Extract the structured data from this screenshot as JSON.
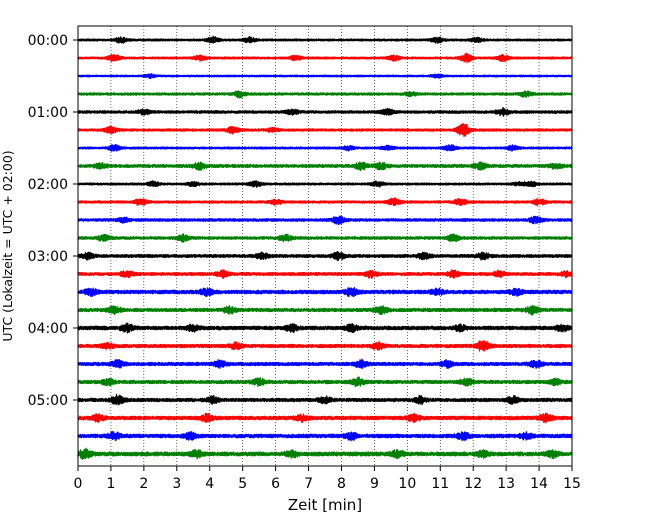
{
  "chart_data": {
    "type": "line",
    "xlabel": "Zeit  [min]",
    "ylabel": "UTC (Lokalzeit = UTC + 02:00)",
    "xlim": [
      0,
      15
    ],
    "x_ticks": [
      0,
      1,
      2,
      3,
      4,
      5,
      6,
      7,
      8,
      9,
      10,
      11,
      12,
      13,
      14,
      15
    ],
    "grid": "vertical-dotted",
    "trace_interval_minutes": 15,
    "trace_count": 24,
    "y_tick_labels": [
      {
        "label": "00:00",
        "trace_index": 0
      },
      {
        "label": "01:00",
        "trace_index": 4
      },
      {
        "label": "02:00",
        "trace_index": 8
      },
      {
        "label": "03:00",
        "trace_index": 12
      },
      {
        "label": "04:00",
        "trace_index": 16
      },
      {
        "label": "05:00",
        "trace_index": 20
      }
    ],
    "color_cycle": [
      "#000000",
      "#ff0000",
      "#0000ff",
      "#008000"
    ],
    "series": [
      {
        "start": "00:00",
        "color": "#000000",
        "noise": 0.3,
        "events": [
          [
            1.3,
            0.8
          ],
          [
            4.1,
            0.9
          ],
          [
            5.2,
            0.7
          ],
          [
            10.9,
            0.8
          ],
          [
            12.1,
            0.6
          ]
        ]
      },
      {
        "start": "00:15",
        "color": "#ff0000",
        "noise": 0.3,
        "events": [
          [
            1.1,
            1.0
          ],
          [
            3.7,
            0.7
          ],
          [
            6.6,
            0.6
          ],
          [
            9.6,
            0.7
          ],
          [
            11.8,
            1.2
          ],
          [
            12.9,
            0.8
          ]
        ]
      },
      {
        "start": "00:30",
        "color": "#0000ff",
        "noise": 0.25,
        "events": [
          [
            2.2,
            0.5
          ],
          [
            10.9,
            0.5
          ]
        ]
      },
      {
        "start": "00:45",
        "color": "#008000",
        "noise": 0.35,
        "events": [
          [
            4.9,
            0.9
          ],
          [
            10.1,
            0.6
          ],
          [
            13.6,
            0.8
          ]
        ]
      },
      {
        "start": "01:00",
        "color": "#000000",
        "noise": 0.4,
        "events": [
          [
            2.0,
            0.7
          ],
          [
            6.5,
            0.6
          ],
          [
            9.4,
            0.7
          ],
          [
            12.9,
            1.0
          ]
        ]
      },
      {
        "start": "01:15",
        "color": "#ff0000",
        "noise": 0.35,
        "events": [
          [
            1.0,
            0.9
          ],
          [
            4.7,
            0.9
          ],
          [
            11.7,
            1.8
          ],
          [
            5.9,
            0.6
          ]
        ]
      },
      {
        "start": "01:30",
        "color": "#0000ff",
        "noise": 0.3,
        "events": [
          [
            1.1,
            0.8
          ],
          [
            8.2,
            0.6
          ],
          [
            9.4,
            0.6
          ],
          [
            11.3,
            0.8
          ],
          [
            13.2,
            0.7
          ]
        ]
      },
      {
        "start": "01:45",
        "color": "#008000",
        "noise": 0.45,
        "events": [
          [
            0.7,
            0.7
          ],
          [
            3.7,
            1.0
          ],
          [
            8.6,
            1.0
          ],
          [
            9.2,
            0.9
          ],
          [
            12.2,
            0.9
          ],
          [
            14.5,
            0.7
          ]
        ]
      },
      {
        "start": "02:00",
        "color": "#000000",
        "noise": 0.3,
        "events": [
          [
            2.3,
            0.7
          ],
          [
            3.5,
            0.6
          ],
          [
            5.4,
            0.8
          ],
          [
            9.1,
            0.7
          ],
          [
            13.4,
            0.6
          ],
          [
            13.8,
            0.6
          ]
        ]
      },
      {
        "start": "02:15",
        "color": "#ff0000",
        "noise": 0.35,
        "events": [
          [
            1.9,
            0.9
          ],
          [
            6.0,
            0.7
          ],
          [
            9.6,
            1.0
          ],
          [
            11.6,
            0.8
          ],
          [
            14.0,
            0.9
          ]
        ]
      },
      {
        "start": "02:30",
        "color": "#0000ff",
        "noise": 0.4,
        "events": [
          [
            7.9,
            1.0
          ],
          [
            13.9,
            0.9
          ],
          [
            1.4,
            0.6
          ]
        ]
      },
      {
        "start": "02:45",
        "color": "#008000",
        "noise": 0.4,
        "events": [
          [
            0.8,
            0.9
          ],
          [
            3.2,
            0.9
          ],
          [
            6.3,
            0.9
          ],
          [
            11.4,
            0.9
          ]
        ]
      },
      {
        "start": "03:00",
        "color": "#000000",
        "noise": 0.45,
        "events": [
          [
            0.3,
            0.8
          ],
          [
            5.6,
            0.8
          ],
          [
            7.9,
            1.0
          ],
          [
            10.5,
            0.8
          ],
          [
            12.3,
            0.9
          ]
        ]
      },
      {
        "start": "03:15",
        "color": "#ff0000",
        "noise": 0.45,
        "events": [
          [
            1.5,
            0.9
          ],
          [
            4.4,
            0.9
          ],
          [
            8.9,
            0.9
          ],
          [
            11.4,
            0.9
          ],
          [
            12.8,
            0.8
          ],
          [
            14.8,
            0.7
          ]
        ]
      },
      {
        "start": "03:30",
        "color": "#0000ff",
        "noise": 0.55,
        "events": [
          [
            0.4,
            0.9
          ],
          [
            3.9,
            0.9
          ],
          [
            8.3,
            1.1
          ],
          [
            10.9,
            0.8
          ],
          [
            13.3,
            0.8
          ]
        ]
      },
      {
        "start": "03:45",
        "color": "#008000",
        "noise": 0.5,
        "events": [
          [
            1.1,
            1.0
          ],
          [
            4.6,
            0.9
          ],
          [
            9.2,
            0.9
          ],
          [
            13.8,
            1.1
          ]
        ]
      },
      {
        "start": "04:00",
        "color": "#000000",
        "noise": 0.55,
        "events": [
          [
            1.5,
            1.0
          ],
          [
            3.5,
            0.8
          ],
          [
            6.5,
            0.9
          ],
          [
            8.3,
            0.9
          ],
          [
            11.6,
            0.8
          ],
          [
            14.7,
            0.8
          ]
        ]
      },
      {
        "start": "04:15",
        "color": "#ff0000",
        "noise": 0.5,
        "events": [
          [
            0.9,
            0.7
          ],
          [
            4.8,
            0.8
          ],
          [
            9.1,
            0.9
          ],
          [
            12.3,
            1.5
          ]
        ]
      },
      {
        "start": "04:30",
        "color": "#0000ff",
        "noise": 0.5,
        "events": [
          [
            1.2,
            1.0
          ],
          [
            4.3,
            0.9
          ],
          [
            8.6,
            1.0
          ],
          [
            11.2,
            0.9
          ],
          [
            13.9,
            0.9
          ]
        ]
      },
      {
        "start": "04:45",
        "color": "#008000",
        "noise": 0.5,
        "events": [
          [
            0.9,
            0.8
          ],
          [
            5.5,
            0.9
          ],
          [
            8.5,
            1.1
          ],
          [
            11.8,
            0.9
          ],
          [
            14.5,
            0.8
          ]
        ]
      },
      {
        "start": "05:00",
        "color": "#000000",
        "noise": 0.5,
        "events": [
          [
            1.2,
            1.3
          ],
          [
            4.1,
            0.9
          ],
          [
            7.5,
            0.9
          ],
          [
            10.4,
            0.9
          ],
          [
            13.2,
            0.9
          ]
        ]
      },
      {
        "start": "05:15",
        "color": "#ff0000",
        "noise": 0.55,
        "events": [
          [
            0.6,
            0.8
          ],
          [
            3.9,
            0.9
          ],
          [
            6.8,
            0.8
          ],
          [
            10.2,
            0.9
          ],
          [
            14.2,
            1.0
          ]
        ]
      },
      {
        "start": "05:30",
        "color": "#0000ff",
        "noise": 0.55,
        "events": [
          [
            1.1,
            1.0
          ],
          [
            3.4,
            0.9
          ],
          [
            8.3,
            1.0
          ],
          [
            11.7,
            0.9
          ],
          [
            13.6,
            0.8
          ]
        ]
      },
      {
        "start": "05:45",
        "color": "#008000",
        "noise": 0.6,
        "events": [
          [
            0.2,
            1.3
          ],
          [
            3.6,
            0.9
          ],
          [
            6.5,
            0.8
          ],
          [
            9.7,
            0.9
          ],
          [
            12.3,
            0.8
          ],
          [
            14.4,
            0.9
          ]
        ]
      }
    ]
  }
}
